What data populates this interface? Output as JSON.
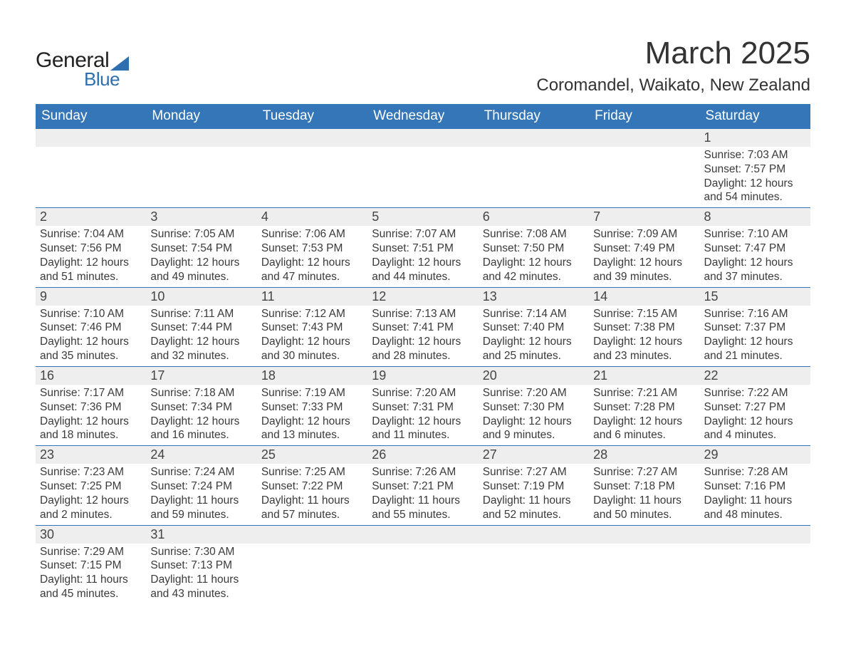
{
  "logo": {
    "text_general": "General",
    "text_blue": "Blue",
    "triangle_color": "#2f6fb0"
  },
  "title": "March 2025",
  "location": "Coromandel, Waikato, New Zealand",
  "colors": {
    "header_bg": "#3476b7",
    "header_text": "#ffffff",
    "daynum_bg": "#eeeeee",
    "row_border": "#3476b7",
    "body_text": "#3a3a3a",
    "page_bg": "#ffffff"
  },
  "typography": {
    "title_fontsize": 44,
    "location_fontsize": 24,
    "header_fontsize": 19,
    "daynum_fontsize": 18,
    "detail_fontsize": 15.5,
    "font_family": "Arial"
  },
  "day_headers": [
    "Sunday",
    "Monday",
    "Tuesday",
    "Wednesday",
    "Thursday",
    "Friday",
    "Saturday"
  ],
  "weeks": [
    {
      "nums": [
        "",
        "",
        "",
        "",
        "",
        "",
        "1"
      ],
      "details": [
        "",
        "",
        "",
        "",
        "",
        "",
        "Sunrise: 7:03 AM\nSunset: 7:57 PM\nDaylight: 12 hours and 54 minutes."
      ]
    },
    {
      "nums": [
        "2",
        "3",
        "4",
        "5",
        "6",
        "7",
        "8"
      ],
      "details": [
        "Sunrise: 7:04 AM\nSunset: 7:56 PM\nDaylight: 12 hours and 51 minutes.",
        "Sunrise: 7:05 AM\nSunset: 7:54 PM\nDaylight: 12 hours and 49 minutes.",
        "Sunrise: 7:06 AM\nSunset: 7:53 PM\nDaylight: 12 hours and 47 minutes.",
        "Sunrise: 7:07 AM\nSunset: 7:51 PM\nDaylight: 12 hours and 44 minutes.",
        "Sunrise: 7:08 AM\nSunset: 7:50 PM\nDaylight: 12 hours and 42 minutes.",
        "Sunrise: 7:09 AM\nSunset: 7:49 PM\nDaylight: 12 hours and 39 minutes.",
        "Sunrise: 7:10 AM\nSunset: 7:47 PM\nDaylight: 12 hours and 37 minutes."
      ]
    },
    {
      "nums": [
        "9",
        "10",
        "11",
        "12",
        "13",
        "14",
        "15"
      ],
      "details": [
        "Sunrise: 7:10 AM\nSunset: 7:46 PM\nDaylight: 12 hours and 35 minutes.",
        "Sunrise: 7:11 AM\nSunset: 7:44 PM\nDaylight: 12 hours and 32 minutes.",
        "Sunrise: 7:12 AM\nSunset: 7:43 PM\nDaylight: 12 hours and 30 minutes.",
        "Sunrise: 7:13 AM\nSunset: 7:41 PM\nDaylight: 12 hours and 28 minutes.",
        "Sunrise: 7:14 AM\nSunset: 7:40 PM\nDaylight: 12 hours and 25 minutes.",
        "Sunrise: 7:15 AM\nSunset: 7:38 PM\nDaylight: 12 hours and 23 minutes.",
        "Sunrise: 7:16 AM\nSunset: 7:37 PM\nDaylight: 12 hours and 21 minutes."
      ]
    },
    {
      "nums": [
        "16",
        "17",
        "18",
        "19",
        "20",
        "21",
        "22"
      ],
      "details": [
        "Sunrise: 7:17 AM\nSunset: 7:36 PM\nDaylight: 12 hours and 18 minutes.",
        "Sunrise: 7:18 AM\nSunset: 7:34 PM\nDaylight: 12 hours and 16 minutes.",
        "Sunrise: 7:19 AM\nSunset: 7:33 PM\nDaylight: 12 hours and 13 minutes.",
        "Sunrise: 7:20 AM\nSunset: 7:31 PM\nDaylight: 12 hours and 11 minutes.",
        "Sunrise: 7:20 AM\nSunset: 7:30 PM\nDaylight: 12 hours and 9 minutes.",
        "Sunrise: 7:21 AM\nSunset: 7:28 PM\nDaylight: 12 hours and 6 minutes.",
        "Sunrise: 7:22 AM\nSunset: 7:27 PM\nDaylight: 12 hours and 4 minutes."
      ]
    },
    {
      "nums": [
        "23",
        "24",
        "25",
        "26",
        "27",
        "28",
        "29"
      ],
      "details": [
        "Sunrise: 7:23 AM\nSunset: 7:25 PM\nDaylight: 12 hours and 2 minutes.",
        "Sunrise: 7:24 AM\nSunset: 7:24 PM\nDaylight: 11 hours and 59 minutes.",
        "Sunrise: 7:25 AM\nSunset: 7:22 PM\nDaylight: 11 hours and 57 minutes.",
        "Sunrise: 7:26 AM\nSunset: 7:21 PM\nDaylight: 11 hours and 55 minutes.",
        "Sunrise: 7:27 AM\nSunset: 7:19 PM\nDaylight: 11 hours and 52 minutes.",
        "Sunrise: 7:27 AM\nSunset: 7:18 PM\nDaylight: 11 hours and 50 minutes.",
        "Sunrise: 7:28 AM\nSunset: 7:16 PM\nDaylight: 11 hours and 48 minutes."
      ]
    },
    {
      "nums": [
        "30",
        "31",
        "",
        "",
        "",
        "",
        ""
      ],
      "details": [
        "Sunrise: 7:29 AM\nSunset: 7:15 PM\nDaylight: 11 hours and 45 minutes.",
        "Sunrise: 7:30 AM\nSunset: 7:13 PM\nDaylight: 11 hours and 43 minutes.",
        "",
        "",
        "",
        "",
        ""
      ]
    }
  ]
}
